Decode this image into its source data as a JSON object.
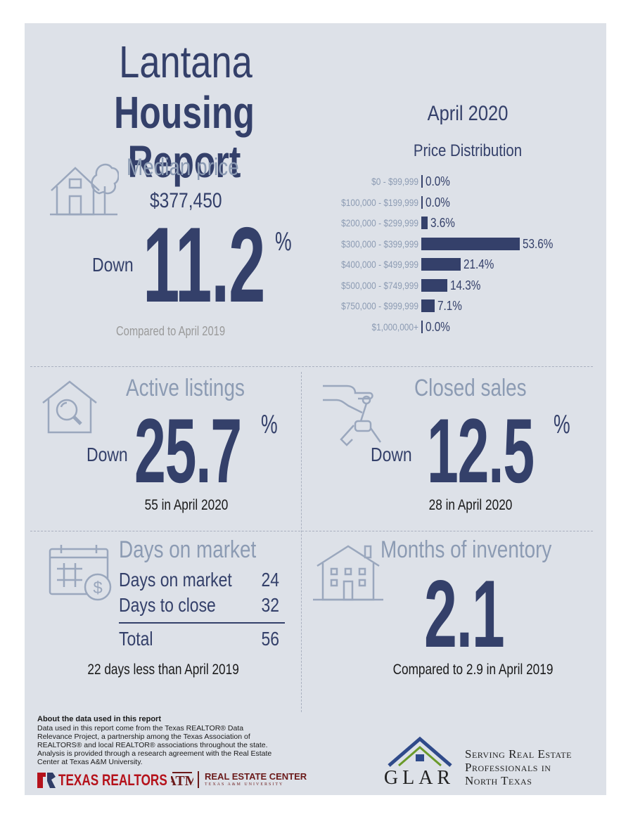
{
  "header": {
    "title_line1": "Lantana",
    "title_line2": "Housing Report",
    "report_date": "April 2020"
  },
  "median_price": {
    "label": "Median price",
    "value": "$377,450",
    "direction": "Down",
    "change_number": "11.2",
    "change_unit": "%",
    "comparison": "Compared to April 2019"
  },
  "price_distribution": {
    "title": "Price Distribution",
    "chart_data": {
      "type": "bar",
      "orientation": "horizontal",
      "title": "Price Distribution",
      "categories": [
        "$0 - $99,999",
        "$100,000 - $199,999",
        "$200,000 - $299,999",
        "$300,000 - $399,999",
        "$400,000 - $499,999",
        "$500,000 - $749,999",
        "$750,000 - $999,999",
        "$1,000,000+"
      ],
      "values": [
        0.0,
        0.0,
        3.6,
        53.6,
        21.4,
        14.3,
        7.1,
        0.0
      ],
      "value_labels": [
        "0.0%",
        "0.0%",
        "3.6%",
        "53.6%",
        "21.4%",
        "14.3%",
        "7.1%",
        "0.0%"
      ],
      "bar_color": "#34406a"
    }
  },
  "active_listings": {
    "label": "Active listings",
    "direction": "Down",
    "change_number": "25.7",
    "change_unit": "%",
    "detail": "55 in April 2020"
  },
  "closed_sales": {
    "label": "Closed sales",
    "direction": "Down",
    "change_number": "12.5",
    "change_unit": "%",
    "detail": "28 in April 2020"
  },
  "days_on_market": {
    "label": "Days on market",
    "rows": [
      {
        "name": "Days on market",
        "value": "24"
      },
      {
        "name": "Days to close",
        "value": "32"
      }
    ],
    "total_name": "Total",
    "total_value": "56",
    "detail": "22 days less than April 2019"
  },
  "months_inventory": {
    "label": "Months of inventory",
    "value": "2.1",
    "detail": "Compared to 2.9 in April 2019"
  },
  "about": {
    "heading": "About the data used in this report",
    "body": "Data used in this report come from the Texas REALTOR® Data Relevance Project, a partnership among the Texas Association of REALTORS® and local REALTOR® associations throughout the state. Analysis is provided through a research agreement with the Real Estate Center at Texas A&M University."
  },
  "footer": {
    "texas_realtors": "TEXAS REALTORS",
    "rec_name": "REAL ESTATE CENTER",
    "rec_sub": "TEXAS A&M UNIVERSITY",
    "glar": "GLAR",
    "tagline_1": "Serving Real Estate",
    "tagline_2": "Professionals in",
    "tagline_3": "North Texas"
  },
  "colors": {
    "navy": "#34406a",
    "steel": "#8c9bb3",
    "panel": "#dde1e8",
    "red": "#b5121b"
  }
}
